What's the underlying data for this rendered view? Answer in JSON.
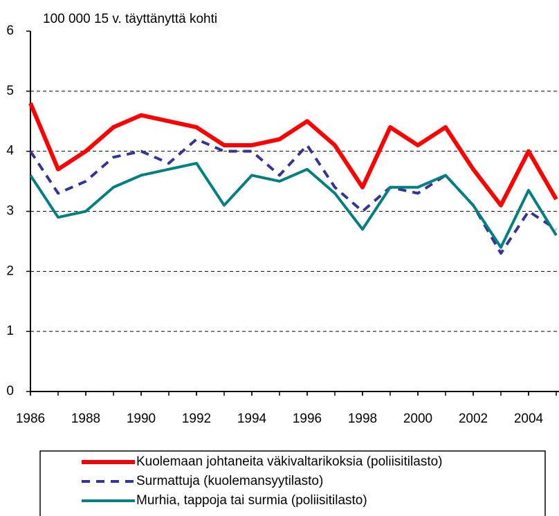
{
  "chart_data": {
    "type": "line",
    "title": "100 000 15 v. täyttänyttä kohti",
    "x": [
      1986,
      1987,
      1988,
      1989,
      1990,
      1991,
      1992,
      1993,
      1994,
      1995,
      1996,
      1997,
      1998,
      1999,
      2000,
      2001,
      2002,
      2003,
      2004,
      2005
    ],
    "series": [
      {
        "name": "Kuolemaan johtaneita väkivaltarikoksia (poliisitilasto)",
        "color": "#ff0000",
        "style": "solid",
        "width": 6,
        "values": [
          4.8,
          3.7,
          4.0,
          4.4,
          4.6,
          4.5,
          4.4,
          4.1,
          4.1,
          4.2,
          4.5,
          4.1,
          3.4,
          4.4,
          4.1,
          4.4,
          3.7,
          3.1,
          4.0,
          3.2
        ]
      },
      {
        "name": "Surmattuja (kuolemansyytilasto)",
        "color": "#333399",
        "style": "dashed",
        "width": 4,
        "values": [
          4.0,
          3.3,
          3.5,
          3.9,
          4.0,
          3.8,
          4.2,
          4.0,
          4.0,
          3.6,
          4.1,
          3.4,
          3.0,
          3.4,
          3.3,
          3.6,
          3.1,
          2.3,
          3.0,
          2.7
        ]
      },
      {
        "name": "Murhia, tappoja tai surmia (poliisitilasto)",
        "color": "#008080",
        "style": "solid",
        "width": 4,
        "values": [
          3.6,
          2.9,
          3.0,
          3.4,
          3.6,
          3.7,
          3.8,
          3.1,
          3.6,
          3.5,
          3.7,
          3.3,
          2.7,
          3.4,
          3.4,
          3.6,
          3.1,
          2.4,
          3.35,
          2.6
        ]
      }
    ],
    "xlim": [
      1986,
      2005
    ],
    "xticks": [
      1986,
      1988,
      1990,
      1992,
      1994,
      1996,
      1998,
      2000,
      2002,
      2004
    ],
    "ylim": [
      0,
      6
    ],
    "yticks": [
      0,
      1,
      2,
      3,
      4,
      5,
      6
    ],
    "grid": true
  }
}
